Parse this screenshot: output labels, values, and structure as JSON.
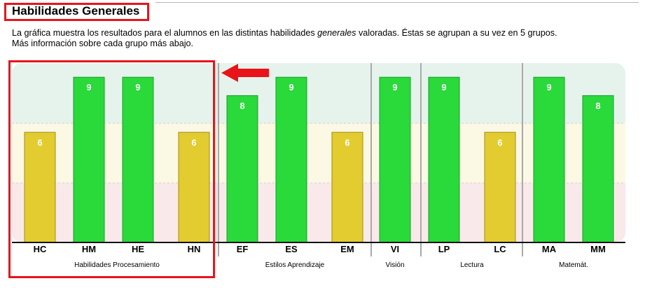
{
  "header": {
    "title": "Habilidades Generales",
    "desc_before": "La gráfica muestra los resultados para el alumnos en las distintas habilidades ",
    "desc_italic": "generales",
    "desc_after": " valoradas. Éstas se agrupan a su vez en 5 grupos.",
    "desc_line2": "Más información sobre cada grupo más abajo."
  },
  "chart_data": {
    "type": "bar",
    "title": "Habilidades Generales",
    "categories": [
      "HC",
      "HM",
      "HE",
      "HN",
      "EF",
      "ES",
      "EM",
      "VI",
      "LP",
      "LC",
      "MA",
      "MM"
    ],
    "values": [
      6,
      9,
      9,
      6,
      8,
      9,
      6,
      9,
      9,
      6,
      9,
      8
    ],
    "ylim": [
      0,
      10
    ],
    "data_labels": true,
    "grid": false,
    "groups": [
      {
        "name": "Habilidades Procesamiento",
        "categories": [
          "HC",
          "HM",
          "HE",
          "HN"
        ]
      },
      {
        "name": "Estilos Aprendizaje",
        "categories": [
          "EF",
          "ES",
          "EM"
        ]
      },
      {
        "name": "Visión",
        "categories": [
          "VI"
        ]
      },
      {
        "name": "Lectura",
        "categories": [
          "LP",
          "LC"
        ]
      },
      {
        "name": "Matemát.",
        "categories": [
          "MA",
          "MM"
        ]
      }
    ],
    "colors": {
      "high_bar": "#2ad93a",
      "medium_bar": "#e2cc30",
      "band_high": "#e6f3ec",
      "band_medium": "#fbf8e4",
      "band_low": "#fae9ea"
    }
  },
  "annotations": {
    "highlight_color": "#e8141a"
  }
}
